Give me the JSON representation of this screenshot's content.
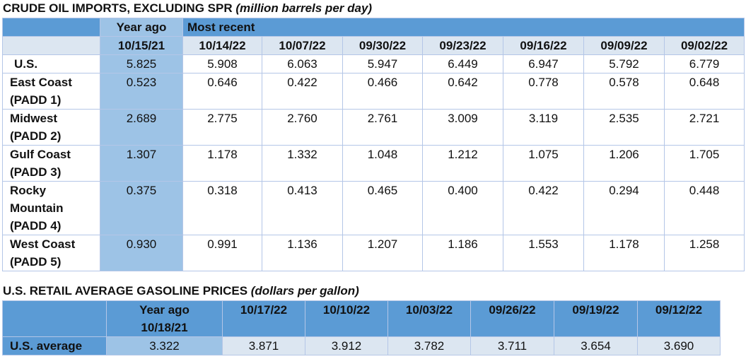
{
  "crude": {
    "title": "CRUDE OIL IMPORTS, EXCLUDING SPR",
    "unit": "(million barrels per day)",
    "year_ago_header": "Year ago",
    "most_recent_header": "Most recent",
    "dates": [
      "10/15/21",
      "10/14/22",
      "10/07/22",
      "09/30/22",
      "09/23/22",
      "09/16/22",
      "09/09/22",
      "09/02/22"
    ],
    "rows": [
      {
        "label": [
          "U.S."
        ],
        "values": [
          "5.825",
          "5.908",
          "6.063",
          "5.947",
          "6.449",
          "6.947",
          "5.792",
          "6.779"
        ]
      },
      {
        "label": [
          "East Coast",
          "(PADD 1)"
        ],
        "values": [
          "0.523",
          "0.646",
          "0.422",
          "0.466",
          "0.642",
          "0.778",
          "0.578",
          "0.648"
        ]
      },
      {
        "label": [
          "Midwest",
          "(PADD 2)"
        ],
        "values": [
          "2.689",
          "2.775",
          "2.760",
          "2.761",
          "3.009",
          "3.119",
          "2.535",
          "2.721"
        ]
      },
      {
        "label": [
          "Gulf Coast",
          "(PADD 3)"
        ],
        "values": [
          "1.307",
          "1.178",
          "1.332",
          "1.048",
          "1.212",
          "1.075",
          "1.206",
          "1.705"
        ]
      },
      {
        "label": [
          "Rocky",
          "Mountain",
          "(PADD 4)"
        ],
        "values": [
          "0.375",
          "0.318",
          "0.413",
          "0.465",
          "0.400",
          "0.422",
          "0.294",
          "0.448"
        ]
      },
      {
        "label": [
          "West Coast",
          "(PADD 5)"
        ],
        "values": [
          "0.930",
          "0.991",
          "1.136",
          "1.207",
          "1.186",
          "1.553",
          "1.178",
          "1.258"
        ]
      }
    ]
  },
  "gasoline": {
    "title": "U.S. RETAIL AVERAGE GASOLINE PRICES",
    "unit": "(dollars per gallon)",
    "year_ago_header": [
      "Year ago",
      "10/18/21"
    ],
    "dates": [
      "10/17/22",
      "10/10/22",
      "10/03/22",
      "09/26/22",
      "09/19/22",
      "09/12/22"
    ],
    "row": {
      "label": "U.S. average",
      "values": [
        "3.322",
        "3.871",
        "3.912",
        "3.782",
        "3.711",
        "3.654",
        "3.690"
      ]
    }
  }
}
